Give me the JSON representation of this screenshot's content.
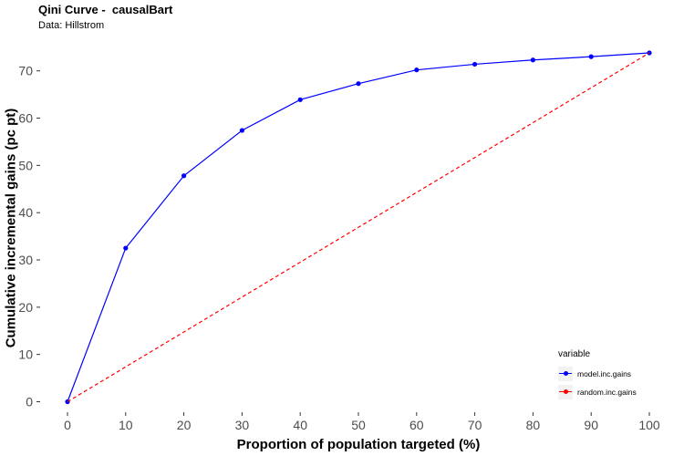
{
  "chart_data": {
    "type": "line",
    "title": "Qini Curve -  causalBart",
    "subtitle": "Data: Hillstrom",
    "xlabel": "Proportion of population targeted (%)",
    "ylabel": "Cumulative incremental gains (pc pt)",
    "xlim": [
      0,
      100
    ],
    "ylim": [
      0,
      73.8
    ],
    "x_ticks": [
      0,
      10,
      20,
      30,
      40,
      50,
      60,
      70,
      80,
      90,
      100
    ],
    "y_ticks": [
      0,
      10,
      20,
      30,
      40,
      50,
      60,
      70
    ],
    "grid": false,
    "legend_position": "bottom-right",
    "legend_title": "variable",
    "x": [
      0,
      10,
      20,
      30,
      40,
      50,
      60,
      70,
      80,
      90,
      100
    ],
    "series": [
      {
        "name": "model.inc.gains",
        "color": "#0000ff",
        "line_style": "solid",
        "markers": true,
        "values": [
          0,
          32.5,
          47.8,
          57.4,
          63.9,
          67.3,
          70.2,
          71.4,
          72.3,
          73.0,
          73.8
        ]
      },
      {
        "name": "random.inc.gains",
        "color": "#ff0000",
        "line_style": "dashed",
        "markers": false,
        "values": [
          0,
          7.38,
          14.76,
          22.14,
          29.52,
          36.9,
          44.28,
          51.66,
          59.04,
          66.42,
          73.8
        ]
      }
    ]
  }
}
